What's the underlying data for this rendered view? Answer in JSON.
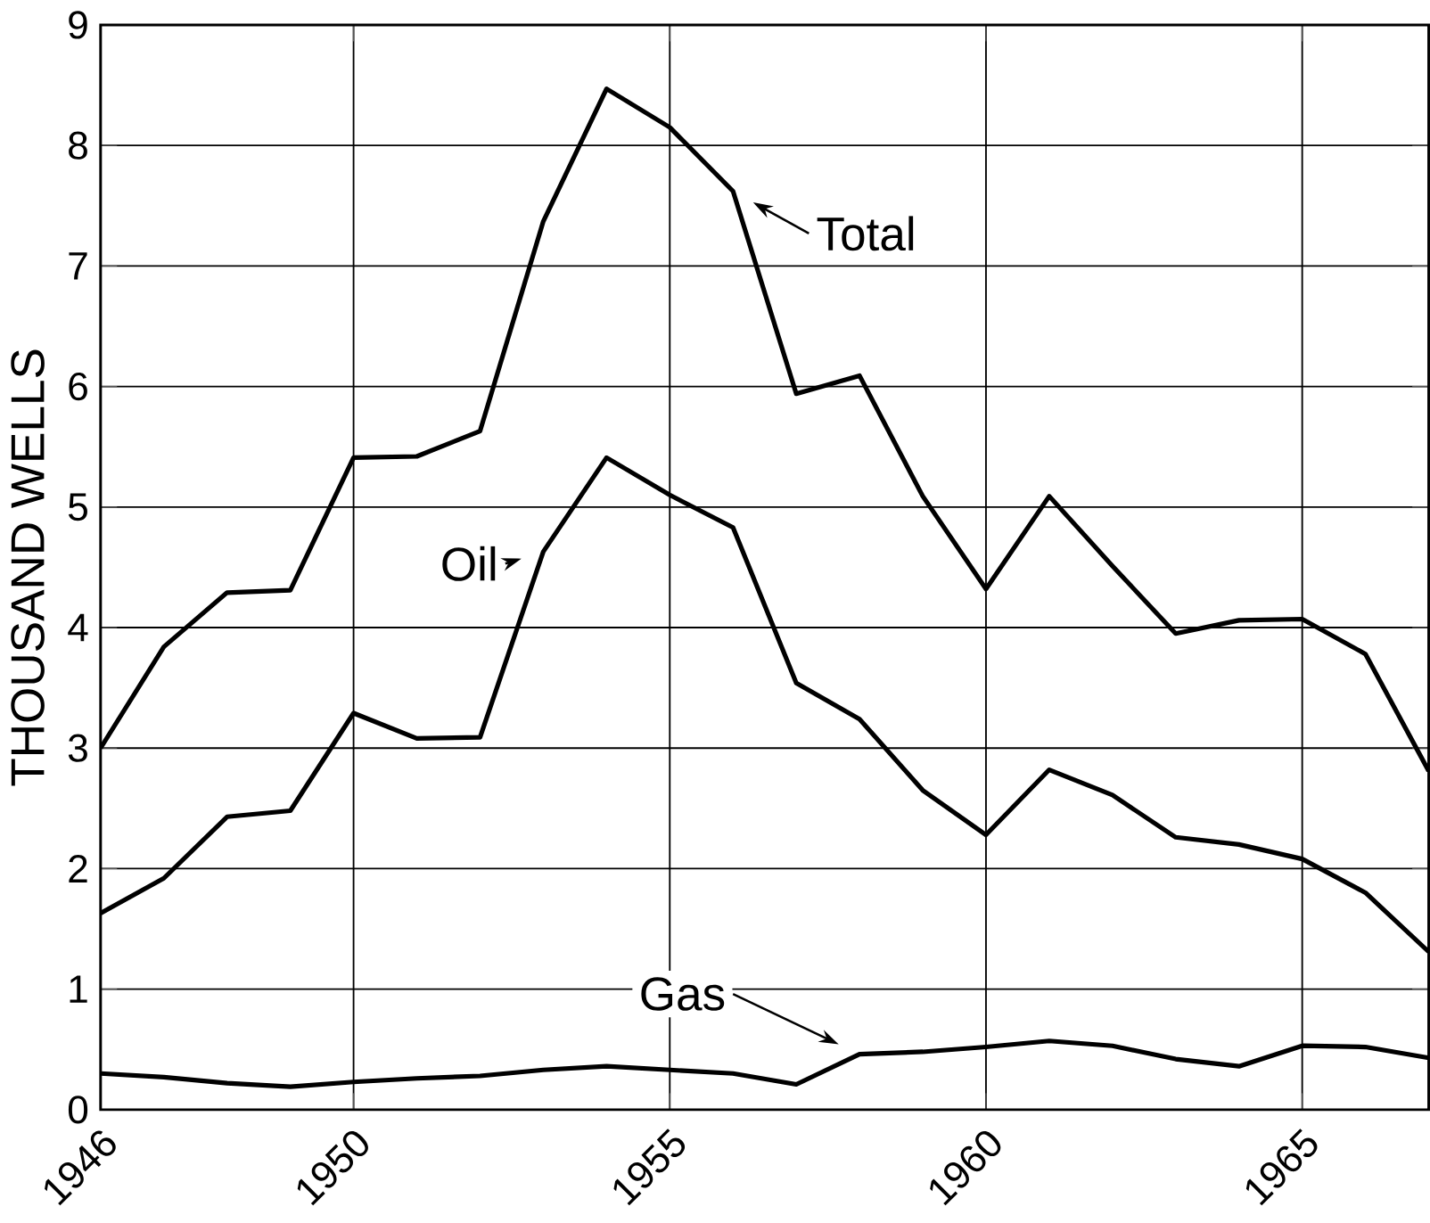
{
  "chart_data": {
    "type": "line",
    "ylabel": "THOUSAND WELLS",
    "x": [
      1946,
      1947,
      1948,
      1949,
      1950,
      1951,
      1952,
      1953,
      1954,
      1955,
      1956,
      1957,
      1958,
      1959,
      1960,
      1961,
      1962,
      1963,
      1964,
      1965,
      1966,
      1967
    ],
    "series": [
      {
        "name": "Total",
        "color": "#000000",
        "values": [
          3.0,
          3.84,
          4.29,
          4.31,
          5.41,
          5.42,
          5.63,
          7.37,
          8.47,
          8.15,
          7.62,
          5.94,
          6.09,
          5.09,
          4.32,
          5.09,
          4.51,
          3.95,
          4.06,
          4.07,
          3.78,
          2.81
        ]
      },
      {
        "name": "Oil",
        "color": "#000000",
        "values": [
          1.63,
          1.92,
          2.43,
          2.48,
          3.29,
          3.08,
          3.09,
          4.63,
          5.41,
          5.1,
          4.83,
          3.54,
          3.24,
          2.65,
          2.28,
          2.82,
          2.61,
          2.26,
          2.2,
          2.08,
          1.8,
          1.31
        ]
      },
      {
        "name": "Gas",
        "color": "#000000",
        "values": [
          0.3,
          0.27,
          0.22,
          0.19,
          0.23,
          0.26,
          0.28,
          0.33,
          0.36,
          0.33,
          0.3,
          0.21,
          0.46,
          0.48,
          0.52,
          0.57,
          0.53,
          0.42,
          0.36,
          0.53,
          0.52,
          0.43
        ]
      }
    ],
    "xlim": [
      1946,
      1967
    ],
    "xticks": [
      1946,
      1950,
      1955,
      1960,
      1965
    ],
    "ylim": [
      0,
      9
    ],
    "yticks": [
      0,
      1,
      2,
      3,
      4,
      5,
      6,
      7,
      8,
      9
    ],
    "grid": true,
    "legend": "center",
    "marker": "none",
    "line_style": "solid"
  }
}
